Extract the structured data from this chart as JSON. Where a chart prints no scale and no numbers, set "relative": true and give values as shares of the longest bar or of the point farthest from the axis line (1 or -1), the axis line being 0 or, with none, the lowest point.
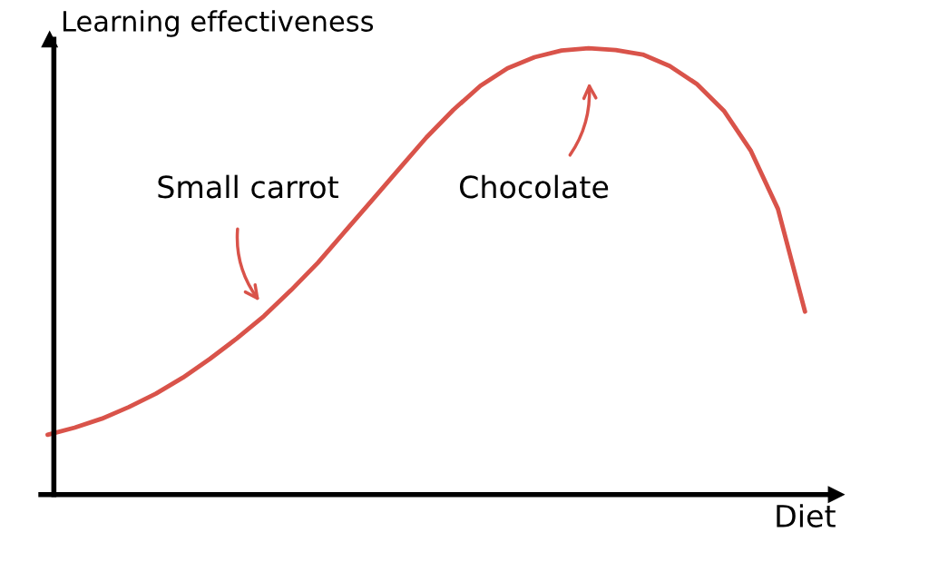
{
  "chart_data": {
    "type": "line",
    "relative": true,
    "xlabel": "Diet",
    "ylabel": "Learning effectiveness",
    "categories": [
      null,
      null,
      null,
      null,
      null,
      null,
      null,
      null,
      null,
      null,
      null,
      null,
      null,
      null,
      null,
      null,
      null,
      null,
      null,
      null,
      null,
      null,
      null,
      null,
      null,
      null,
      null,
      null,
      null
    ],
    "series": [
      {
        "color": "#d9534a",
        "values": [
          0.134,
          0.15,
          0.17,
          0.196,
          0.226,
          0.262,
          0.304,
          0.35,
          0.4,
          0.458,
          0.52,
          0.59,
          0.66,
          0.73,
          0.8,
          0.862,
          0.916,
          0.955,
          0.98,
          0.995,
          1.0,
          0.996,
          0.986,
          0.96,
          0.92,
          0.86,
          0.77,
          0.64,
          0.41
        ]
      }
    ],
    "annotations": [
      "Small carrot",
      "Chocolate"
    ],
    "grid": false,
    "marker": "none",
    "line_style": "solid"
  }
}
